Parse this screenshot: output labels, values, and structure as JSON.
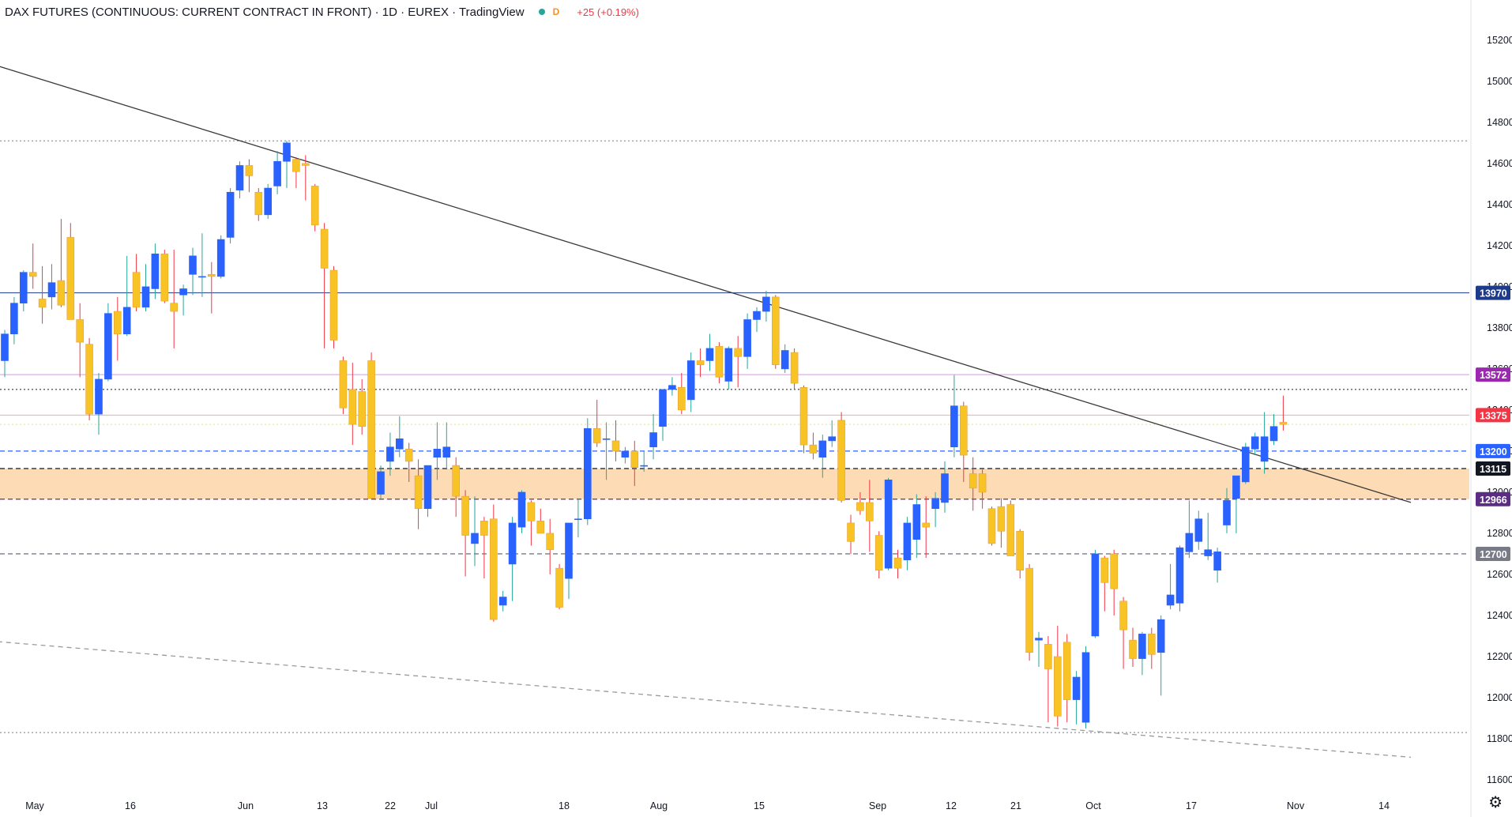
{
  "header": {
    "title": "DAX FUTURES (CONTINUOUS: CURRENT CONTRACT IN FRONT) · 1D · EUREX · TradingView",
    "interval_badge": "D",
    "change": "+25 (+0.19%)"
  },
  "colors": {
    "bull": "#2962ff",
    "bear": "#f7c325",
    "bear_border": "#e6a23c",
    "wick_bull": "#26a69a",
    "wick_bear": "#f23645",
    "zone": "#fddcb5",
    "trend": "#3a3a3a"
  },
  "chart_data": {
    "type": "candlestick",
    "y_axis_ticks": [
      "15200",
      "15000",
      "14800",
      "14600",
      "14400",
      "14200",
      "14000",
      "13800",
      "13600",
      "13400",
      "13200",
      "13000",
      "12800",
      "12600",
      "12400",
      "12200",
      "12000",
      "11800",
      "11600"
    ],
    "ylim": [
      11550,
      15280
    ],
    "x_axis_labels": [
      {
        "label": "May",
        "date": "2022-05-02"
      },
      {
        "label": "16",
        "date": "2022-05-16"
      },
      {
        "label": "Jun",
        "date": "2022-06-01"
      },
      {
        "label": "13",
        "date": "2022-06-13"
      },
      {
        "label": "22",
        "date": "2022-06-22"
      },
      {
        "label": "Jul",
        "date": "2022-07-01"
      },
      {
        "label": "18",
        "date": "2022-07-18"
      },
      {
        "label": "Aug",
        "date": "2022-08-01"
      },
      {
        "label": "15",
        "date": "2022-08-15"
      },
      {
        "label": "Sep",
        "date": "2022-09-01"
      },
      {
        "label": "12",
        "date": "2022-09-12"
      },
      {
        "label": "21",
        "date": "2022-09-21"
      },
      {
        "label": "Oct",
        "date": "2022-10-03"
      },
      {
        "label": "17",
        "date": "2022-10-17"
      },
      {
        "label": "Nov",
        "date": "2022-11-01"
      },
      {
        "label": "14",
        "date": "2022-11-14"
      }
    ],
    "price_levels": [
      {
        "label": "13970",
        "value": 13970,
        "color": "#1e3a8a",
        "line": "solid"
      },
      {
        "label": "13572",
        "value": 13572,
        "color": "#9c27b0",
        "line": "solid"
      },
      {
        "label": "13375",
        "value": 13375,
        "color": "#f23645",
        "line": "solid"
      },
      {
        "label": "13200",
        "value": 13200,
        "color": "#2962ff",
        "line": "dashed"
      },
      {
        "label": "13115",
        "value": 13115,
        "color": "#131722",
        "line": "dashed"
      },
      {
        "label": "12966",
        "value": 12966,
        "color": "#5b2c83",
        "line": "dashed"
      },
      {
        "label": "12700",
        "value": 12700,
        "color": "#787b86",
        "line": "dashed"
      }
    ],
    "extra_lines": [
      {
        "value": 14710,
        "color": "#787b86",
        "style": "dotted"
      },
      {
        "value": 13500,
        "color": "#131722",
        "style": "dotted"
      },
      {
        "value": 13330,
        "color": "#e5e56e",
        "style": "dotted"
      },
      {
        "value": 11830,
        "color": "#787b86",
        "style": "dotted"
      }
    ],
    "zone": {
      "from": 12966,
      "to": 13115
    },
    "trendlines": [
      {
        "from": {
          "date": "2022-04-20",
          "price": 15140
        },
        "to": {
          "date": "2022-11-18",
          "price": 12950
        },
        "style": "solid"
      },
      {
        "from": {
          "date": "2022-04-20",
          "price": 12290
        },
        "to": {
          "date": "2022-11-18",
          "price": 11710
        },
        "style": "dashed"
      }
    ],
    "candles": [
      {
        "o": 13640,
        "h": 13790,
        "l": 13560,
        "c": 13770
      },
      {
        "o": 13770,
        "h": 13950,
        "l": 13720,
        "c": 13920
      },
      {
        "o": 13920,
        "h": 14080,
        "l": 13880,
        "c": 14070
      },
      {
        "o": 14070,
        "h": 14210,
        "l": 13990,
        "c": 14050
      },
      {
        "o": 13940,
        "h": 14100,
        "l": 13820,
        "c": 13900
      },
      {
        "o": 13950,
        "h": 14110,
        "l": 13890,
        "c": 14020
      },
      {
        "o": 14030,
        "h": 14330,
        "l": 13900,
        "c": 13910
      },
      {
        "o": 14240,
        "h": 14310,
        "l": 13860,
        "c": 13840
      },
      {
        "o": 13840,
        "h": 13920,
        "l": 13560,
        "c": 13730
      },
      {
        "o": 13720,
        "h": 13750,
        "l": 13350,
        "c": 13380
      },
      {
        "o": 13380,
        "h": 13580,
        "l": 13280,
        "c": 13550
      },
      {
        "o": 13550,
        "h": 13920,
        "l": 13540,
        "c": 13870
      },
      {
        "o": 13880,
        "h": 13950,
        "l": 13640,
        "c": 13770
      },
      {
        "o": 13770,
        "h": 14150,
        "l": 13760,
        "c": 13900
      },
      {
        "o": 14070,
        "h": 14160,
        "l": 13880,
        "c": 13900
      },
      {
        "o": 13900,
        "h": 14110,
        "l": 13880,
        "c": 14000
      },
      {
        "o": 13990,
        "h": 14210,
        "l": 13940,
        "c": 14160
      },
      {
        "o": 14160,
        "h": 14180,
        "l": 13920,
        "c": 13930
      },
      {
        "o": 13920,
        "h": 14180,
        "l": 13700,
        "c": 13880
      },
      {
        "o": 13960,
        "h": 14010,
        "l": 13860,
        "c": 13990
      },
      {
        "o": 14060,
        "h": 14190,
        "l": 13960,
        "c": 14150
      },
      {
        "o": 14050,
        "h": 14260,
        "l": 13950,
        "c": 14050
      },
      {
        "o": 14060,
        "h": 14120,
        "l": 13870,
        "c": 14050
      },
      {
        "o": 14050,
        "h": 14250,
        "l": 14040,
        "c": 14230
      },
      {
        "o": 14240,
        "h": 14480,
        "l": 14210,
        "c": 14460
      },
      {
        "o": 14470,
        "h": 14610,
        "l": 14430,
        "c": 14590
      },
      {
        "o": 14590,
        "h": 14620,
        "l": 14460,
        "c": 14540
      },
      {
        "o": 14460,
        "h": 14480,
        "l": 14320,
        "c": 14350
      },
      {
        "o": 14350,
        "h": 14500,
        "l": 14330,
        "c": 14480
      },
      {
        "o": 14490,
        "h": 14660,
        "l": 14450,
        "c": 14610
      },
      {
        "o": 14610,
        "h": 14710,
        "l": 14480,
        "c": 14700
      },
      {
        "o": 14620,
        "h": 14630,
        "l": 14480,
        "c": 14560
      },
      {
        "o": 14600,
        "h": 14640,
        "l": 14420,
        "c": 14590
      },
      {
        "o": 14490,
        "h": 14500,
        "l": 14270,
        "c": 14300
      },
      {
        "o": 14280,
        "h": 14310,
        "l": 13700,
        "c": 14090
      },
      {
        "o": 14080,
        "h": 14100,
        "l": 13700,
        "c": 13740
      },
      {
        "o": 13640,
        "h": 13660,
        "l": 13380,
        "c": 13410
      },
      {
        "o": 13500,
        "h": 13630,
        "l": 13230,
        "c": 13330
      },
      {
        "o": 13490,
        "h": 13550,
        "l": 13280,
        "c": 13320
      },
      {
        "o": 13640,
        "h": 13680,
        "l": 12980,
        "c": 12970
      },
      {
        "o": 12990,
        "h": 13130,
        "l": 12970,
        "c": 13100
      },
      {
        "o": 13150,
        "h": 13290,
        "l": 13080,
        "c": 13220
      },
      {
        "o": 13210,
        "h": 13370,
        "l": 13170,
        "c": 13260
      },
      {
        "o": 13210,
        "h": 13240,
        "l": 13050,
        "c": 13150
      },
      {
        "o": 13080,
        "h": 13160,
        "l": 12820,
        "c": 12920
      },
      {
        "o": 12920,
        "h": 13120,
        "l": 12880,
        "c": 13130
      },
      {
        "o": 13170,
        "h": 13340,
        "l": 13060,
        "c": 13210
      },
      {
        "o": 13170,
        "h": 13340,
        "l": 13110,
        "c": 13220
      },
      {
        "o": 13130,
        "h": 13170,
        "l": 12880,
        "c": 12980
      },
      {
        "o": 12980,
        "h": 13010,
        "l": 12590,
        "c": 12790
      },
      {
        "o": 12750,
        "h": 12980,
        "l": 12640,
        "c": 12800
      },
      {
        "o": 12860,
        "h": 12880,
        "l": 12580,
        "c": 12790
      },
      {
        "o": 12870,
        "h": 12940,
        "l": 12370,
        "c": 12380
      },
      {
        "o": 12450,
        "h": 12520,
        "l": 12420,
        "c": 12490
      },
      {
        "o": 12650,
        "h": 12880,
        "l": 12470,
        "c": 12850
      },
      {
        "o": 12830,
        "h": 13010,
        "l": 12800,
        "c": 13000
      },
      {
        "o": 12950,
        "h": 12960,
        "l": 12740,
        "c": 12860
      },
      {
        "o": 12860,
        "h": 12920,
        "l": 12800,
        "c": 12800
      },
      {
        "o": 12800,
        "h": 12870,
        "l": 12600,
        "c": 12720
      },
      {
        "o": 12630,
        "h": 12650,
        "l": 12430,
        "c": 12440
      },
      {
        "o": 12580,
        "h": 12840,
        "l": 12480,
        "c": 12850
      },
      {
        "o": 12870,
        "h": 12970,
        "l": 12780,
        "c": 12870
      },
      {
        "o": 12870,
        "h": 13360,
        "l": 12840,
        "c": 13310
      },
      {
        "o": 13310,
        "h": 13450,
        "l": 13220,
        "c": 13240
      },
      {
        "o": 13260,
        "h": 13340,
        "l": 13060,
        "c": 13260
      },
      {
        "o": 13250,
        "h": 13350,
        "l": 13150,
        "c": 13200
      },
      {
        "o": 13170,
        "h": 13220,
        "l": 13140,
        "c": 13200
      },
      {
        "o": 13200,
        "h": 13250,
        "l": 13030,
        "c": 13120
      },
      {
        "o": 13130,
        "h": 13200,
        "l": 13100,
        "c": 13130
      },
      {
        "o": 13220,
        "h": 13380,
        "l": 13160,
        "c": 13290
      },
      {
        "o": 13320,
        "h": 13500,
        "l": 13250,
        "c": 13500
      },
      {
        "o": 13500,
        "h": 13560,
        "l": 13470,
        "c": 13520
      },
      {
        "o": 13510,
        "h": 13580,
        "l": 13380,
        "c": 13400
      },
      {
        "o": 13450,
        "h": 13680,
        "l": 13390,
        "c": 13640
      },
      {
        "o": 13640,
        "h": 13700,
        "l": 13560,
        "c": 13620
      },
      {
        "o": 13640,
        "h": 13770,
        "l": 13590,
        "c": 13700
      },
      {
        "o": 13710,
        "h": 13730,
        "l": 13530,
        "c": 13560
      },
      {
        "o": 13540,
        "h": 13710,
        "l": 13500,
        "c": 13700
      },
      {
        "o": 13700,
        "h": 13760,
        "l": 13510,
        "c": 13660
      },
      {
        "o": 13660,
        "h": 13870,
        "l": 13600,
        "c": 13840
      },
      {
        "o": 13840,
        "h": 13900,
        "l": 13780,
        "c": 13880
      },
      {
        "o": 13880,
        "h": 13980,
        "l": 13830,
        "c": 13950
      },
      {
        "o": 13950,
        "h": 13960,
        "l": 13600,
        "c": 13620
      },
      {
        "o": 13600,
        "h": 13720,
        "l": 13580,
        "c": 13690
      },
      {
        "o": 13680,
        "h": 13700,
        "l": 13500,
        "c": 13530
      },
      {
        "o": 13510,
        "h": 13520,
        "l": 13190,
        "c": 13230
      },
      {
        "o": 13230,
        "h": 13290,
        "l": 13160,
        "c": 13190
      },
      {
        "o": 13170,
        "h": 13280,
        "l": 13070,
        "c": 13250
      },
      {
        "o": 13250,
        "h": 13350,
        "l": 13220,
        "c": 13270
      },
      {
        "o": 13350,
        "h": 13390,
        "l": 12950,
        "c": 12960
      },
      {
        "o": 12850,
        "h": 12890,
        "l": 12700,
        "c": 12760
      },
      {
        "o": 12950,
        "h": 13000,
        "l": 12890,
        "c": 12910
      },
      {
        "o": 12950,
        "h": 13060,
        "l": 12710,
        "c": 12860
      },
      {
        "o": 12790,
        "h": 12810,
        "l": 12580,
        "c": 12620
      },
      {
        "o": 12630,
        "h": 13070,
        "l": 12620,
        "c": 13060
      },
      {
        "o": 12680,
        "h": 12720,
        "l": 12580,
        "c": 12630
      },
      {
        "o": 12670,
        "h": 12880,
        "l": 12620,
        "c": 12850
      },
      {
        "o": 12770,
        "h": 12990,
        "l": 12680,
        "c": 12940
      },
      {
        "o": 12850,
        "h": 12980,
        "l": 12680,
        "c": 12830
      },
      {
        "o": 12920,
        "h": 13000,
        "l": 12830,
        "c": 12970
      },
      {
        "o": 12950,
        "h": 13150,
        "l": 12900,
        "c": 13090
      },
      {
        "o": 13220,
        "h": 13570,
        "l": 13170,
        "c": 13420
      },
      {
        "o": 13420,
        "h": 13440,
        "l": 13050,
        "c": 13180
      },
      {
        "o": 13090,
        "h": 13170,
        "l": 12910,
        "c": 13020
      },
      {
        "o": 13090,
        "h": 13110,
        "l": 12920,
        "c": 13000
      },
      {
        "o": 12920,
        "h": 12930,
        "l": 12740,
        "c": 12750
      },
      {
        "o": 12930,
        "h": 12970,
        "l": 12730,
        "c": 12810
      },
      {
        "o": 12940,
        "h": 12960,
        "l": 12700,
        "c": 12690
      },
      {
        "o": 12810,
        "h": 12820,
        "l": 12580,
        "c": 12620
      },
      {
        "o": 12630,
        "h": 12650,
        "l": 12180,
        "c": 12220
      },
      {
        "o": 12280,
        "h": 12320,
        "l": 12150,
        "c": 12290
      },
      {
        "o": 12260,
        "h": 12300,
        "l": 11880,
        "c": 12140
      },
      {
        "o": 12200,
        "h": 12350,
        "l": 11860,
        "c": 11910
      },
      {
        "o": 12270,
        "h": 12310,
        "l": 11880,
        "c": 11990
      },
      {
        "o": 11990,
        "h": 12130,
        "l": 11870,
        "c": 12100
      },
      {
        "o": 11880,
        "h": 12250,
        "l": 11850,
        "c": 12220
      },
      {
        "o": 12300,
        "h": 12720,
        "l": 12290,
        "c": 12700
      },
      {
        "o": 12680,
        "h": 12690,
        "l": 12420,
        "c": 12560
      },
      {
        "o": 12700,
        "h": 12720,
        "l": 12400,
        "c": 12530
      },
      {
        "o": 12470,
        "h": 12490,
        "l": 12140,
        "c": 12330
      },
      {
        "o": 12280,
        "h": 12340,
        "l": 12150,
        "c": 12190
      },
      {
        "o": 12190,
        "h": 12320,
        "l": 12110,
        "c": 12310
      },
      {
        "o": 12310,
        "h": 12340,
        "l": 12140,
        "c": 12210
      },
      {
        "o": 12220,
        "h": 12400,
        "l": 12010,
        "c": 12380
      },
      {
        "o": 12450,
        "h": 12650,
        "l": 12430,
        "c": 12500
      },
      {
        "o": 12460,
        "h": 12740,
        "l": 12420,
        "c": 12730
      },
      {
        "o": 12710,
        "h": 12960,
        "l": 12680,
        "c": 12800
      },
      {
        "o": 12760,
        "h": 12910,
        "l": 12720,
        "c": 12870
      },
      {
        "o": 12690,
        "h": 12900,
        "l": 12670,
        "c": 12720
      },
      {
        "o": 12620,
        "h": 12730,
        "l": 12560,
        "c": 12710
      },
      {
        "o": 12840,
        "h": 13020,
        "l": 12800,
        "c": 12960
      },
      {
        "o": 12970,
        "h": 13080,
        "l": 12800,
        "c": 13080
      },
      {
        "o": 13050,
        "h": 13240,
        "l": 13040,
        "c": 13220
      },
      {
        "o": 13210,
        "h": 13290,
        "l": 13180,
        "c": 13270
      },
      {
        "o": 13150,
        "h": 13390,
        "l": 13090,
        "c": 13270
      },
      {
        "o": 13250,
        "h": 13380,
        "l": 13230,
        "c": 13320
      },
      {
        "o": 13340,
        "h": 13470,
        "l": 13300,
        "c": 13330
      }
    ]
  }
}
